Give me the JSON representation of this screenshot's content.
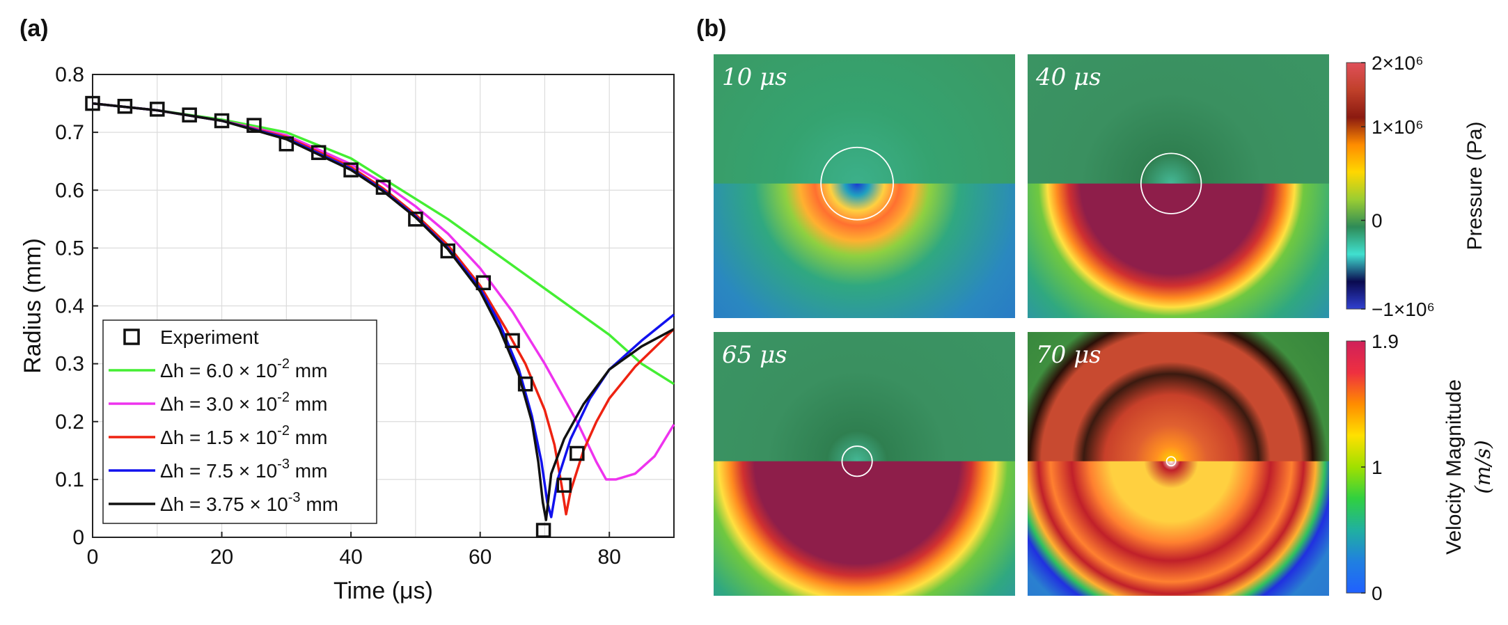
{
  "panel_labels": {
    "a": "(a)",
    "b": "(b)"
  },
  "chart_data": [
    {
      "type": "line",
      "panel": "(a)",
      "title": "",
      "xlabel": "Time (μs)",
      "ylabel": "Radius (mm)",
      "xlim": [
        0,
        90
      ],
      "ylim": [
        0,
        0.8
      ],
      "xticks": [
        0,
        20,
        40,
        60,
        80
      ],
      "yticks": [
        0,
        0.1,
        0.2,
        0.3,
        0.4,
        0.5,
        0.6,
        0.7,
        0.8
      ],
      "ytick_labels": [
        "0",
        "0.1",
        "0.2",
        "0.3",
        "0.4",
        "0.5",
        "0.6",
        "0.7",
        "0.8"
      ],
      "grid": true,
      "legend_position": "bottom-left",
      "series": [
        {
          "name": "Experiment",
          "kind": "markers",
          "marker": "square",
          "color": "#111111",
          "x": [
            0,
            5,
            10,
            15,
            20,
            25,
            30,
            35,
            40,
            45,
            50,
            55,
            60.5,
            65,
            67,
            69.8,
            73,
            75
          ],
          "y": [
            0.75,
            0.745,
            0.74,
            0.73,
            0.72,
            0.712,
            0.68,
            0.665,
            0.635,
            0.605,
            0.55,
            0.495,
            0.44,
            0.34,
            0.265,
            0.012,
            0.09,
            0.145
          ]
        },
        {
          "name": "Δh = 6.0 × 10⁻² mm",
          "label_main": "Δh = 6.0 × 10",
          "label_exp": "-2",
          "label_unit": " mm",
          "kind": "line",
          "color": "#44ee33",
          "x": [
            0,
            10,
            20,
            30,
            40,
            45,
            50,
            55,
            60,
            65,
            70,
            75,
            80,
            85,
            90
          ],
          "y": [
            0.75,
            0.738,
            0.722,
            0.7,
            0.655,
            0.62,
            0.585,
            0.55,
            0.51,
            0.47,
            0.43,
            0.39,
            0.35,
            0.3,
            0.265
          ]
        },
        {
          "name": "Δh = 3.0 × 10⁻² mm",
          "label_main": "Δh = 3.0 × 10",
          "label_exp": "-2",
          "label_unit": " mm",
          "kind": "line",
          "color": "#ee33ee",
          "x": [
            0,
            10,
            20,
            30,
            40,
            45,
            50,
            55,
            60,
            65,
            70,
            75,
            78,
            79.5,
            81,
            84,
            87,
            90
          ],
          "y": [
            0.75,
            0.738,
            0.72,
            0.695,
            0.645,
            0.612,
            0.572,
            0.525,
            0.465,
            0.39,
            0.3,
            0.2,
            0.13,
            0.1,
            0.1,
            0.11,
            0.14,
            0.195
          ]
        },
        {
          "name": "Δh = 1.5 × 10⁻² mm",
          "label_main": "Δh = 1.5 × 10",
          "label_exp": "-2",
          "label_unit": " mm",
          "kind": "line",
          "color": "#ee2211",
          "x": [
            0,
            10,
            20,
            30,
            40,
            45,
            50,
            55,
            60,
            64,
            67,
            70,
            71.5,
            72.6,
            73.3,
            74,
            76,
            78,
            80,
            84,
            90
          ],
          "y": [
            0.75,
            0.738,
            0.72,
            0.692,
            0.64,
            0.603,
            0.558,
            0.505,
            0.435,
            0.36,
            0.3,
            0.22,
            0.16,
            0.09,
            0.04,
            0.08,
            0.15,
            0.2,
            0.24,
            0.295,
            0.36
          ]
        },
        {
          "name": "Δh = 7.5 × 10⁻³ mm",
          "label_main": "Δh = 7.5 × 10",
          "label_exp": "-3",
          "label_unit": " mm",
          "kind": "line",
          "color": "#1111ee",
          "x": [
            0,
            10,
            20,
            30,
            40,
            45,
            50,
            55,
            60,
            63,
            66,
            68,
            69.5,
            70.4,
            71,
            72,
            74,
            77,
            80,
            85,
            90
          ],
          "y": [
            0.75,
            0.738,
            0.72,
            0.69,
            0.637,
            0.6,
            0.555,
            0.5,
            0.43,
            0.37,
            0.29,
            0.21,
            0.13,
            0.06,
            0.035,
            0.1,
            0.17,
            0.24,
            0.29,
            0.34,
            0.385
          ]
        },
        {
          "name": "Δh = 3.75 × 10⁻³ mm",
          "label_main": "Δh = 3.75 × 10",
          "label_exp": "-3",
          "label_unit": " mm",
          "kind": "line",
          "color": "#111111",
          "x": [
            0,
            10,
            20,
            30,
            40,
            45,
            50,
            55,
            60,
            63,
            66,
            68,
            69,
            69.7,
            70.2,
            71,
            73,
            76,
            80,
            85,
            90
          ],
          "y": [
            0.75,
            0.738,
            0.72,
            0.688,
            0.635,
            0.598,
            0.553,
            0.498,
            0.425,
            0.36,
            0.28,
            0.2,
            0.13,
            0.06,
            0.03,
            0.11,
            0.17,
            0.23,
            0.29,
            0.33,
            0.36
          ]
        }
      ]
    },
    {
      "type": "heatmap",
      "panel": "(b)",
      "frames": [
        {
          "time_label": "10 μs",
          "bubble_r": 0.12,
          "shock_inner": 0.03,
          "shock_outer": 0.16,
          "shock_mode": "small"
        },
        {
          "time_label": "40 μs",
          "bubble_r": 0.1,
          "shock_inner": 0.3,
          "shock_outer": 0.44,
          "shock_mode": "big"
        },
        {
          "time_label": "65 μs",
          "bubble_r": 0.05,
          "shock_inner": 0.34,
          "shock_outer": 0.5,
          "shock_mode": "big"
        },
        {
          "time_label": "70 μs",
          "bubble_r": 0.015,
          "shock_inner": 0.42,
          "shock_outer": 0.55,
          "shock_mode": "ring"
        }
      ],
      "colorbars": [
        {
          "name": "pressure",
          "label": "Pressure (Pa)",
          "tick_labels": [
            "2×10⁶",
            "1×10⁶",
            "0",
            "−1×10⁶"
          ],
          "colors": [
            "#e0505a",
            "#c0402a",
            "#8b1a10",
            "#ff8c00",
            "#ffd700",
            "#9acd32",
            "#2e8b57",
            "#40e0d0",
            "#0a0a50",
            "#3040d0"
          ]
        },
        {
          "name": "velocity",
          "label_line1": "Velocity Magnitude",
          "label_line2": "(m/s)",
          "tick_labels": [
            "1.9",
            "1",
            "0"
          ],
          "colors": [
            "#d0205a",
            "#ee3040",
            "#ff8c00",
            "#ffe000",
            "#a0e000",
            "#30d040",
            "#20b0a0",
            "#2080e0",
            "#2060ff"
          ]
        }
      ]
    }
  ]
}
